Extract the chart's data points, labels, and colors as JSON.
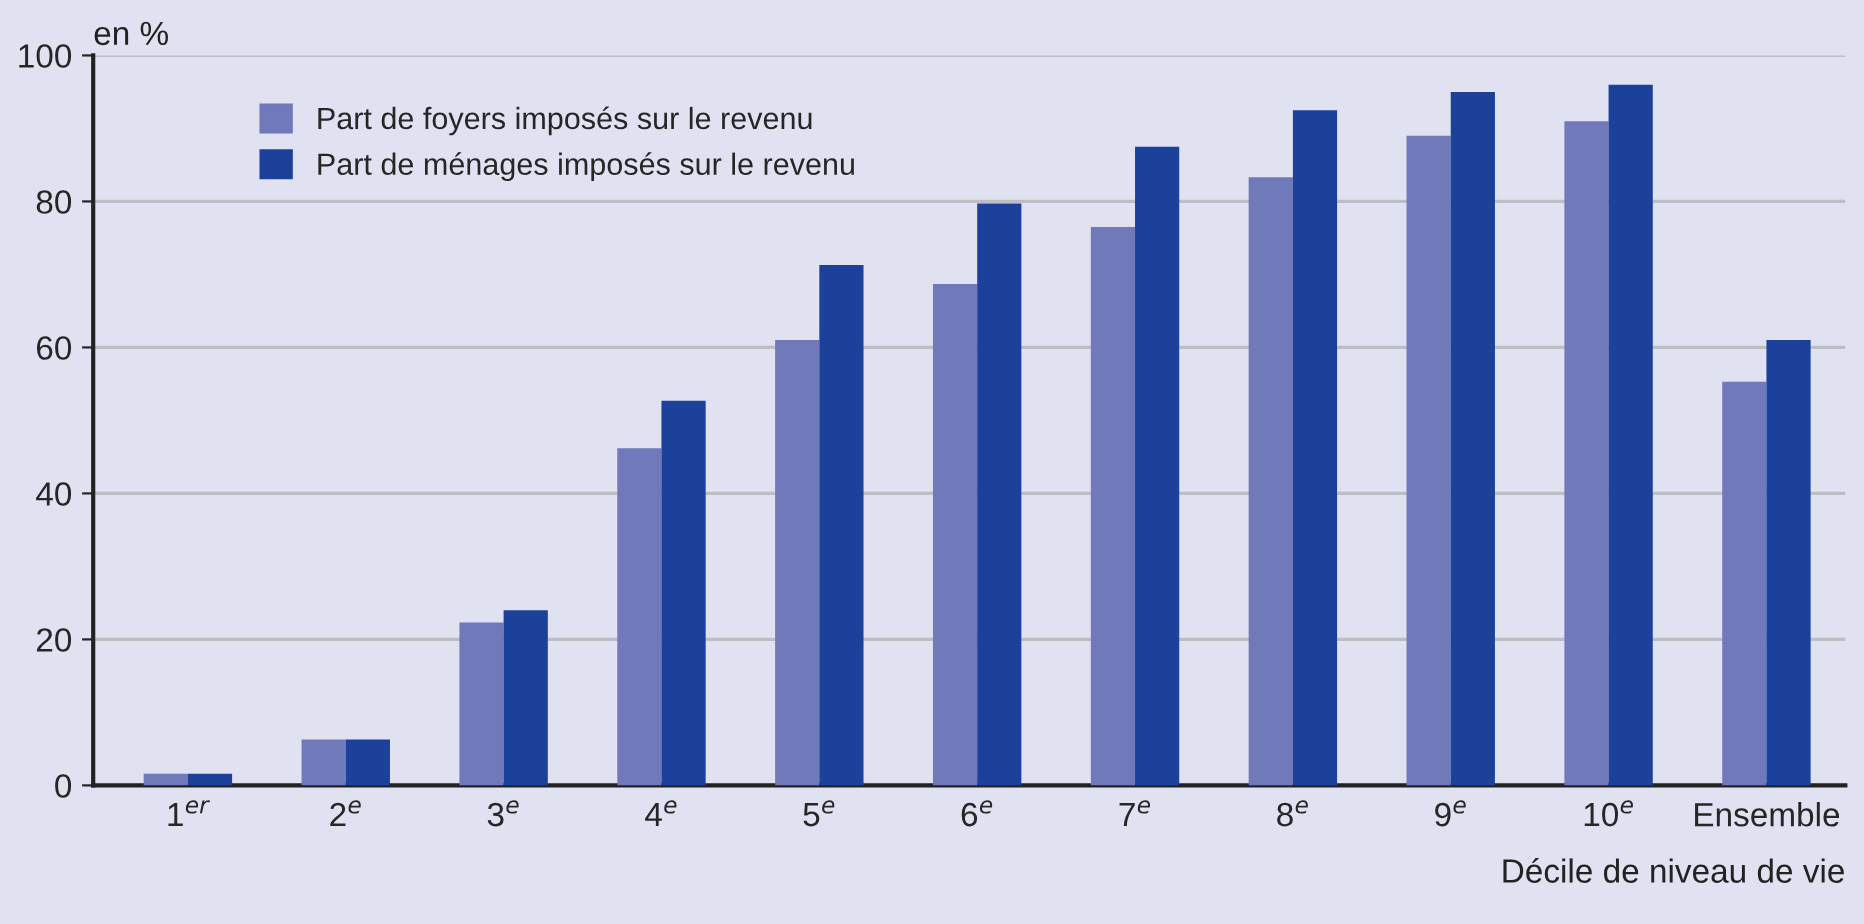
{
  "chart_data": {
    "type": "bar",
    "ylabel": "en %",
    "xlabel": "Décile de niveau de vie",
    "categories": [
      "1$^{er}$",
      "2$^{e}$",
      "3$^{e}$",
      "4$^{e}$",
      "5$^{e}$",
      "6$^{e}$",
      "7$^{e}$",
      "8$^{e}$",
      "9$^{e}$",
      "10$^{e}$",
      "Ensemble"
    ],
    "series": [
      {
        "name": "Part de foyers imposés sur le revenu",
        "color": "#7079b9",
        "values": [
          1.6,
          6.3,
          22.3,
          46.2,
          61,
          68.7,
          76.5,
          83.3,
          89,
          91,
          55.3
        ]
      },
      {
        "name": "Part de ménages imposés sur le revenu",
        "color": "#1c419a",
        "values": [
          1.6,
          6.3,
          24,
          52.7,
          71.3,
          79.7,
          87.5,
          92.5,
          95,
          96,
          61
        ]
      }
    ],
    "ylim": [
      0,
      100
    ],
    "yticks": [
      0,
      20,
      40,
      60,
      80,
      100
    ],
    "grid": "y",
    "legend": "top left"
  }
}
